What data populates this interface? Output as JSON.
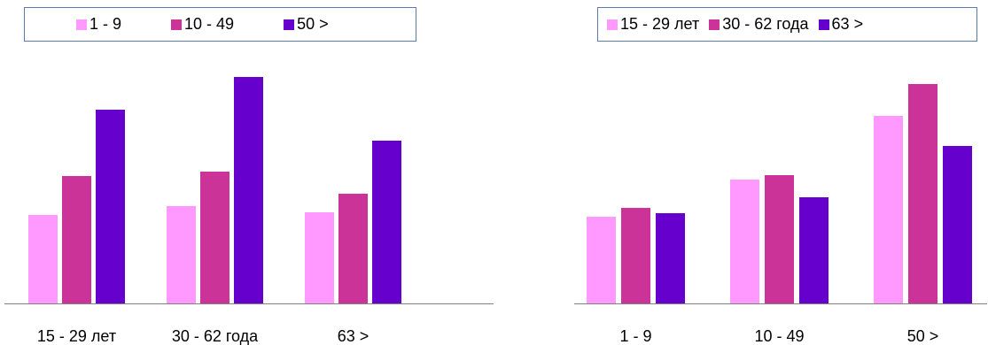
{
  "colors": {
    "light": "#ff99ff",
    "medium": "#cc3399",
    "dark": "#6600cc",
    "axis": "#808080",
    "legend_border": "#5b7bb0"
  },
  "chart_data": [
    {
      "type": "bar",
      "categories": [
        "15 - 29 лет",
        "30 - 62 года",
        "63 >"
      ],
      "series": [
        {
          "name": "1 - 9",
          "color": "#ff99ff",
          "values": [
            100,
            110,
            103
          ]
        },
        {
          "name": "10 - 49",
          "color": "#cc3399",
          "values": [
            144,
            149,
            124
          ]
        },
        {
          "name": "50 >",
          "color": "#6600cc",
          "values": [
            219,
            256,
            184
          ]
        }
      ],
      "ylim": [
        0,
        270
      ],
      "legend_position": "top",
      "grid": false
    },
    {
      "type": "bar",
      "categories": [
        "1 - 9",
        "10 - 49",
        "50 >"
      ],
      "series": [
        {
          "name": "15 - 29 лет",
          "color": "#ff99ff",
          "values": [
            98,
            140,
            212
          ]
        },
        {
          "name": "30 - 62 года",
          "color": "#cc3399",
          "values": [
            108,
            145,
            248
          ]
        },
        {
          "name": "63  >",
          "color": "#6600cc",
          "values": [
            102,
            120,
            178
          ]
        }
      ],
      "ylim": [
        0,
        270
      ],
      "legend_position": "top",
      "grid": false
    }
  ]
}
